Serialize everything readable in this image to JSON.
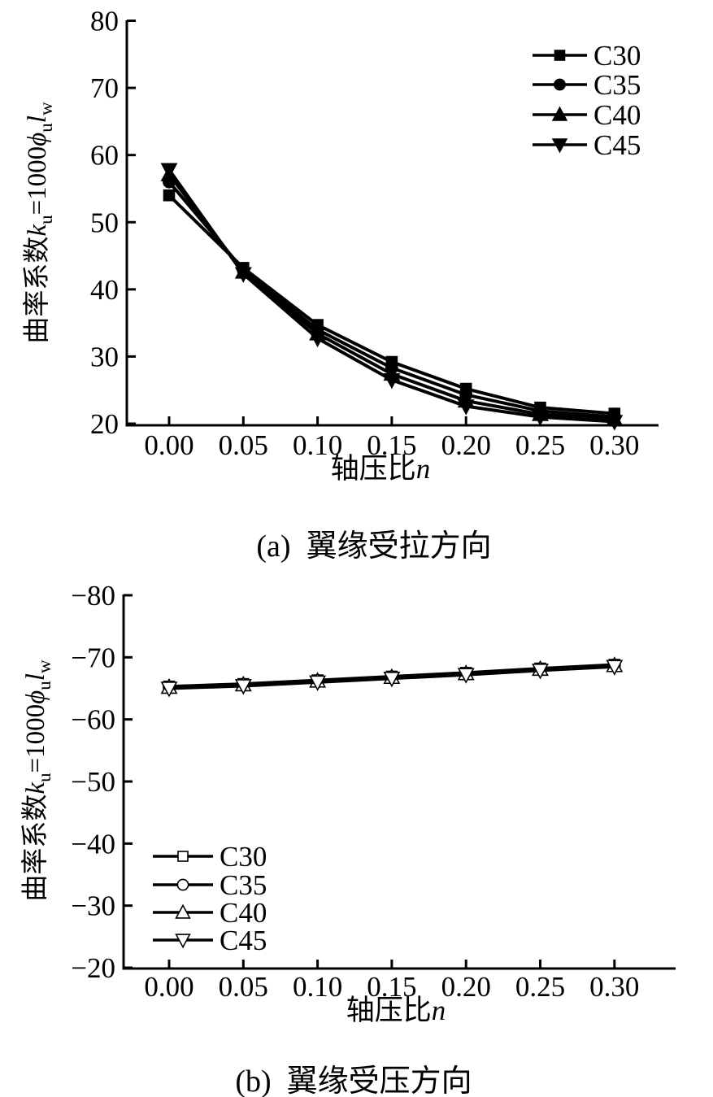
{
  "figure": {
    "background": "#ffffff",
    "ink": "#000000"
  },
  "chart_data": [
    {
      "id": "a",
      "type": "line",
      "caption": "(a)  翼缘受拉方向",
      "xlabel": "轴压比n",
      "ylabel": "曲率系数ku=1000ϕulw",
      "xlabel_parts": [
        {
          "text": "轴压比",
          "italic": false
        },
        {
          "text": "n",
          "italic": true
        }
      ],
      "ylabel_parts": [
        {
          "text": "曲率系数",
          "italic": false
        },
        {
          "text": "k",
          "italic": true
        },
        {
          "text": "u",
          "italic": false,
          "sub": true
        },
        {
          "text": "=1000",
          "italic": false
        },
        {
          "text": "ϕ",
          "italic": true
        },
        {
          "text": "u",
          "italic": false,
          "sub": true
        },
        {
          "text": "l",
          "italic": true
        },
        {
          "text": "w",
          "italic": false,
          "sub": true
        }
      ],
      "x": [
        0.0,
        0.05,
        0.1,
        0.15,
        0.2,
        0.25,
        0.3
      ],
      "x_tick_labels": [
        "0.00",
        "0.05",
        "0.10",
        "0.15",
        "0.20",
        "0.25",
        "0.30"
      ],
      "y_tick_values": [
        20,
        30,
        40,
        50,
        60,
        70,
        80
      ],
      "y_tick_labels": [
        "20",
        "30",
        "40",
        "50",
        "60",
        "70",
        "80"
      ],
      "ylim": [
        20,
        80
      ],
      "grid": false,
      "legend_position": "top-right",
      "marker_style": "filled",
      "series": [
        {
          "name": "C30",
          "marker": "square",
          "values": [
            54.0,
            43.2,
            34.7,
            29.2,
            25.2,
            22.4,
            21.5
          ]
        },
        {
          "name": "C35",
          "marker": "circle",
          "values": [
            56.0,
            42.9,
            34.0,
            28.3,
            24.3,
            21.9,
            21.0
          ]
        },
        {
          "name": "C40",
          "marker": "triangle-up",
          "values": [
            57.1,
            42.6,
            33.4,
            27.4,
            23.4,
            21.4,
            20.7
          ]
        },
        {
          "name": "C45",
          "marker": "triangle-down",
          "values": [
            57.8,
            42.3,
            32.7,
            26.5,
            22.6,
            21.0,
            20.3
          ]
        }
      ]
    },
    {
      "id": "b",
      "type": "line",
      "caption": "(b)  翼缘受压方向",
      "xlabel": "轴压比n",
      "ylabel": "曲率系数ku=1000ϕulw",
      "xlabel_parts": [
        {
          "text": "轴压比",
          "italic": false
        },
        {
          "text": "n",
          "italic": true
        }
      ],
      "ylabel_parts": [
        {
          "text": "曲率系数",
          "italic": false
        },
        {
          "text": "k",
          "italic": true
        },
        {
          "text": "u",
          "italic": false,
          "sub": true
        },
        {
          "text": "=1000",
          "italic": false
        },
        {
          "text": "ϕ",
          "italic": true
        },
        {
          "text": "u",
          "italic": false,
          "sub": true
        },
        {
          "text": "l",
          "italic": true
        },
        {
          "text": "w",
          "italic": false,
          "sub": true
        }
      ],
      "x": [
        0.0,
        0.05,
        0.1,
        0.15,
        0.2,
        0.25,
        0.3
      ],
      "x_tick_labels": [
        "0.00",
        "0.05",
        "0.10",
        "0.15",
        "0.20",
        "0.25",
        "0.30"
      ],
      "y_tick_values": [
        -80,
        -70,
        -60,
        -50,
        -40,
        -30,
        -20
      ],
      "y_tick_labels": [
        "−80",
        "−70",
        "−60",
        "−50",
        "−40",
        "−30",
        "−20"
      ],
      "ylim": [
        -80,
        -20
      ],
      "y_axis_inverted": true,
      "grid": false,
      "legend_position": "lower-left",
      "marker_style": "open",
      "series": [
        {
          "name": "C30",
          "marker": "square",
          "values": [
            -65.3,
            -65.7,
            -66.3,
            -66.9,
            -67.5,
            -68.2,
            -68.8
          ]
        },
        {
          "name": "C35",
          "marker": "circle",
          "values": [
            -65.25,
            -65.65,
            -66.25,
            -66.85,
            -67.45,
            -68.15,
            -68.75
          ]
        },
        {
          "name": "C40",
          "marker": "triangle-up",
          "values": [
            -65.2,
            -65.6,
            -66.2,
            -66.8,
            -67.4,
            -68.1,
            -68.7
          ]
        },
        {
          "name": "C45",
          "marker": "triangle-down",
          "values": [
            -65.0,
            -65.4,
            -66.0,
            -66.6,
            -67.2,
            -67.9,
            -68.5
          ]
        }
      ]
    }
  ]
}
